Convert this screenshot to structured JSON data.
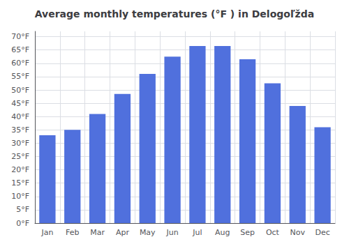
{
  "chart_data": {
    "type": "bar",
    "title": "Average monthly temperatures (°F ) in Delogoľžda",
    "categories": [
      "Jan",
      "Feb",
      "Mar",
      "Apr",
      "May",
      "Jun",
      "Jul",
      "Aug",
      "Sep",
      "Oct",
      "Nov",
      "Dec"
    ],
    "values": [
      33,
      35,
      41,
      48.5,
      56,
      62.5,
      66.5,
      66.5,
      61.5,
      52.5,
      44,
      36
    ],
    "ylim": [
      0,
      72
    ],
    "yticks": [
      {
        "value": 0,
        "label": "0°F"
      },
      {
        "value": 5,
        "label": "5°F"
      },
      {
        "value": 10,
        "label": "10°F"
      },
      {
        "value": 15,
        "label": "15°F"
      },
      {
        "value": 20,
        "label": "20°F"
      },
      {
        "value": 25,
        "label": "25°F"
      },
      {
        "value": 30,
        "label": "30°F"
      },
      {
        "value": 35,
        "label": "35°F"
      },
      {
        "value": 40,
        "label": "40°F"
      },
      {
        "value": 45,
        "label": "45°F"
      },
      {
        "value": 50,
        "label": "50°F"
      },
      {
        "value": 55,
        "label": "55°F"
      },
      {
        "value": 60,
        "label": "60°F"
      },
      {
        "value": 65,
        "label": "65°F"
      },
      {
        "value": 70,
        "label": "70°F"
      }
    ],
    "grid": true
  }
}
